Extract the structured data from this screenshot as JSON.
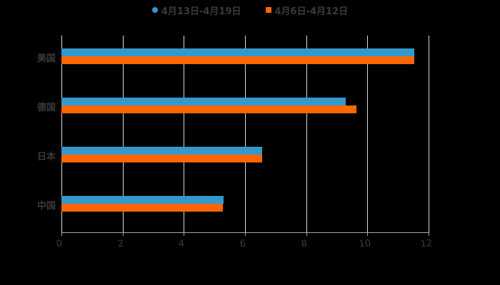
{
  "chart_data": {
    "type": "bar",
    "orientation": "horizontal",
    "title": "",
    "xlabel": "",
    "ylabel": "",
    "xlim": [
      0,
      12
    ],
    "x_ticks": [
      "0",
      "2",
      "4",
      "6",
      "8",
      "10",
      "12"
    ],
    "grid": true,
    "legend_position": "top",
    "categories": [
      "美国",
      "德国",
      "日本",
      "中国"
    ],
    "series": [
      {
        "name": "4月13日-4月19日",
        "color": "#3399cc",
        "values": [
          11.53,
          9.29,
          6.56,
          5.3
        ]
      },
      {
        "name": "4月6日-4月12日",
        "color": "#ff6600",
        "values": [
          11.53,
          9.64,
          6.56,
          5.28
        ]
      }
    ]
  },
  "legend": {
    "items": [
      {
        "label": "4月13日-4月19日",
        "color": "#3399cc",
        "marker": "circle"
      },
      {
        "label": "4月6日-4月12日",
        "color": "#ff6600",
        "marker": "square"
      }
    ]
  },
  "colors": {
    "background": "#000000",
    "text": "#3a3a3a",
    "grid": "#d9d9d9"
  }
}
